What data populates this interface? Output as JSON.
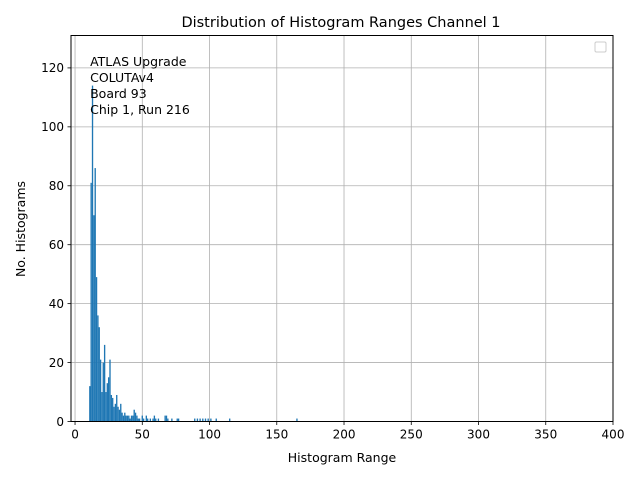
{
  "chart_data": {
    "type": "bar",
    "title": "Distribution of Histogram Ranges Channel 1",
    "xlabel": "Histogram Range",
    "ylabel": "No. Histograms",
    "xlim": [
      -3,
      400
    ],
    "ylim": [
      0,
      131
    ],
    "xticks": [
      "0",
      "50",
      "100",
      "150",
      "200",
      "250",
      "300",
      "350",
      "400"
    ],
    "yticks": [
      "0",
      "20",
      "40",
      "60",
      "80",
      "100",
      "120"
    ],
    "grid": true,
    "legend": "top-right",
    "annotation": [
      "ATLAS Upgrade",
      "COLUTAv4",
      " Board 93",
      "Chip 1, Run 216"
    ],
    "bar_color": "#1f77b4",
    "bins": [
      {
        "x": 11,
        "y": 12
      },
      {
        "x": 12,
        "y": 81
      },
      {
        "x": 13,
        "y": 114
      },
      {
        "x": 14,
        "y": 70
      },
      {
        "x": 15,
        "y": 86
      },
      {
        "x": 16,
        "y": 49
      },
      {
        "x": 17,
        "y": 36
      },
      {
        "x": 18,
        "y": 32
      },
      {
        "x": 19,
        "y": 21
      },
      {
        "x": 20,
        "y": 10
      },
      {
        "x": 21,
        "y": 20
      },
      {
        "x": 22,
        "y": 26
      },
      {
        "x": 23,
        "y": 10
      },
      {
        "x": 24,
        "y": 13
      },
      {
        "x": 25,
        "y": 15
      },
      {
        "x": 26,
        "y": 21
      },
      {
        "x": 27,
        "y": 9
      },
      {
        "x": 28,
        "y": 8
      },
      {
        "x": 29,
        "y": 5
      },
      {
        "x": 30,
        "y": 6
      },
      {
        "x": 31,
        "y": 9
      },
      {
        "x": 32,
        "y": 5
      },
      {
        "x": 33,
        "y": 4
      },
      {
        "x": 34,
        "y": 6
      },
      {
        "x": 35,
        "y": 3
      },
      {
        "x": 36,
        "y": 2
      },
      {
        "x": 37,
        "y": 3
      },
      {
        "x": 38,
        "y": 2
      },
      {
        "x": 39,
        "y": 2
      },
      {
        "x": 40,
        "y": 2
      },
      {
        "x": 41,
        "y": 1
      },
      {
        "x": 42,
        "y": 2
      },
      {
        "x": 43,
        "y": 2
      },
      {
        "x": 44,
        "y": 4
      },
      {
        "x": 45,
        "y": 3
      },
      {
        "x": 46,
        "y": 2
      },
      {
        "x": 47,
        "y": 1
      },
      {
        "x": 48,
        "y": 1
      },
      {
        "x": 50,
        "y": 2
      },
      {
        "x": 51,
        "y": 1
      },
      {
        "x": 53,
        "y": 2
      },
      {
        "x": 54,
        "y": 1
      },
      {
        "x": 56,
        "y": 1
      },
      {
        "x": 58,
        "y": 1
      },
      {
        "x": 59,
        "y": 2
      },
      {
        "x": 60,
        "y": 1
      },
      {
        "x": 62,
        "y": 1
      },
      {
        "x": 67,
        "y": 2
      },
      {
        "x": 68,
        "y": 2
      },
      {
        "x": 69,
        "y": 1
      },
      {
        "x": 72,
        "y": 1
      },
      {
        "x": 76,
        "y": 1
      },
      {
        "x": 77,
        "y": 1
      },
      {
        "x": 89,
        "y": 1
      },
      {
        "x": 91,
        "y": 1
      },
      {
        "x": 93,
        "y": 1
      },
      {
        "x": 95,
        "y": 1
      },
      {
        "x": 97,
        "y": 1
      },
      {
        "x": 99,
        "y": 1
      },
      {
        "x": 101,
        "y": 1
      },
      {
        "x": 105,
        "y": 1
      },
      {
        "x": 115,
        "y": 1
      },
      {
        "x": 165,
        "y": 1
      }
    ]
  }
}
